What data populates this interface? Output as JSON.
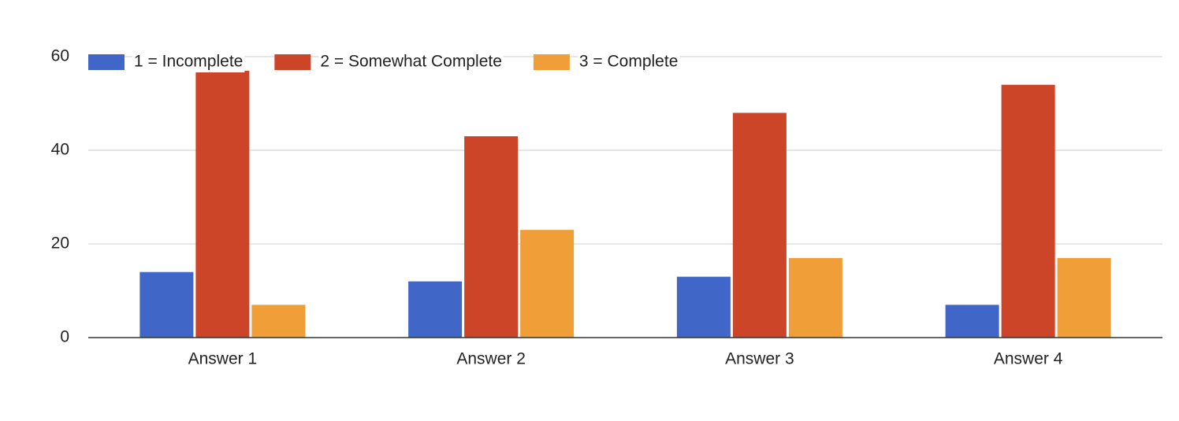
{
  "chart_data": {
    "type": "bar",
    "categories": [
      "Answer 1",
      "Answer 2",
      "Answer 3",
      "Answer 4"
    ],
    "series": [
      {
        "name": "1 = Incomplete",
        "color": "#4066c7",
        "values": [
          14,
          12,
          13,
          7
        ]
      },
      {
        "name": "2 = Somewhat Complete",
        "color": "#cc4528",
        "values": [
          57,
          43,
          48,
          54
        ]
      },
      {
        "name": "3 = Complete",
        "color": "#f09e38",
        "values": [
          7,
          23,
          17,
          17
        ]
      }
    ],
    "ylim": [
      0,
      60
    ],
    "yticks": [
      0,
      20,
      40,
      60
    ],
    "grid": true,
    "legend": "top-left"
  }
}
